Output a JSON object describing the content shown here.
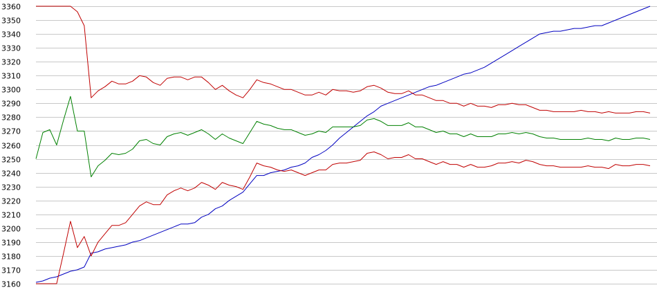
{
  "chart_data": {
    "type": "line",
    "title": "",
    "xlabel": "",
    "ylabel": "",
    "ylim": [
      3160,
      3360
    ],
    "yticks": [
      3160,
      3170,
      3180,
      3190,
      3200,
      3210,
      3220,
      3230,
      3240,
      3250,
      3260,
      3270,
      3280,
      3290,
      3300,
      3310,
      3320,
      3330,
      3340,
      3350,
      3360
    ],
    "grid": "horizontal",
    "legend": "none",
    "x": [
      1,
      2,
      3,
      4,
      5,
      6,
      7,
      8,
      9,
      10,
      11,
      12,
      13,
      14,
      15,
      16,
      17,
      18,
      19,
      20,
      21,
      22,
      23,
      24,
      25,
      26,
      27,
      28,
      29,
      30,
      31,
      32,
      33,
      34,
      35,
      36,
      37,
      38,
      39,
      40,
      41,
      42,
      43,
      44,
      45,
      46,
      47,
      48,
      49,
      50,
      51,
      52,
      53,
      54,
      55,
      56,
      57,
      58,
      59,
      60,
      61,
      62,
      63,
      64,
      65,
      66,
      67,
      68,
      69,
      70,
      71,
      72,
      73,
      74,
      75,
      76,
      77,
      78,
      79,
      80,
      81,
      82,
      83,
      84,
      85,
      86,
      87,
      88,
      89,
      90
    ],
    "series": [
      {
        "color": "#0000c0",
        "values": [
          3161,
          3162,
          3164,
          3165,
          3167,
          3169,
          3170,
          3172,
          3182,
          3183,
          3185,
          3186,
          3187,
          3188,
          3190,
          3191,
          3193,
          3195,
          3197,
          3199,
          3201,
          3203,
          3203,
          3204,
          3208,
          3210,
          3214,
          3216,
          3220,
          3223,
          3226,
          3232,
          3238,
          3238,
          3240,
          3241,
          3242,
          3244,
          3245,
          3247,
          3251,
          3253,
          3256,
          3260,
          3265,
          3269,
          3273,
          3277,
          3281,
          3284,
          3288,
          3290,
          3292,
          3294,
          3296,
          3298,
          3300,
          3302,
          3303,
          3305,
          3307,
          3309,
          3311,
          3312,
          3314,
          3316,
          3319,
          3322,
          3325,
          3328,
          3331,
          3334,
          3337,
          3340,
          3341,
          3342,
          3342,
          3343,
          3344,
          3344,
          3345,
          3346,
          3346,
          3348,
          3350,
          3352,
          3354,
          3356,
          3358,
          3360
        ]
      },
      {
        "color": "#c00000",
        "values": [
          3360,
          3360,
          3360,
          3360,
          3360,
          3360,
          3356,
          3346,
          3294,
          3299,
          3302,
          3306,
          3304,
          3304,
          3306,
          3310,
          3309,
          3305,
          3303,
          3308,
          3309,
          3309,
          3307,
          3309,
          3309,
          3305,
          3300,
          3303,
          3299,
          3296,
          3294,
          3300,
          3307,
          3305,
          3304,
          3302,
          3300,
          3300,
          3298,
          3296,
          3296,
          3298,
          3296,
          3300,
          3299,
          3299,
          3298,
          3299,
          3302,
          3303,
          3301,
          3298,
          3297,
          3297,
          3299,
          3296,
          3296,
          3294,
          3292,
          3292,
          3290,
          3290,
          3288,
          3290,
          3288,
          3288,
          3287,
          3289,
          3289,
          3290,
          3289,
          3289,
          3287,
          3285,
          3285,
          3284,
          3284,
          3284,
          3284,
          3285,
          3284,
          3284,
          3283,
          3284,
          3283,
          3283,
          3283,
          3284,
          3284,
          3283
        ]
      },
      {
        "color": "#008000",
        "values": [
          3250,
          3269,
          3271,
          3260,
          3278,
          3295,
          3270,
          3270,
          3237,
          3245,
          3249,
          3254,
          3253,
          3254,
          3257,
          3263,
          3264,
          3261,
          3260,
          3266,
          3268,
          3269,
          3267,
          3269,
          3271,
          3268,
          3264,
          3268,
          3265,
          3263,
          3261,
          3269,
          3277,
          3275,
          3274,
          3272,
          3271,
          3271,
          3269,
          3267,
          3268,
          3270,
          3269,
          3273,
          3273,
          3273,
          3273,
          3274,
          3278,
          3279,
          3277,
          3274,
          3274,
          3274,
          3276,
          3273,
          3273,
          3271,
          3269,
          3270,
          3268,
          3268,
          3266,
          3268,
          3266,
          3266,
          3266,
          3268,
          3268,
          3269,
          3268,
          3269,
          3268,
          3266,
          3265,
          3265,
          3264,
          3264,
          3264,
          3264,
          3265,
          3264,
          3264,
          3263,
          3265,
          3264,
          3264,
          3265,
          3265,
          3264
        ]
      },
      {
        "color": "#c00000",
        "values": [
          3160,
          3160,
          3160,
          3160,
          3182,
          3205,
          3186,
          3194,
          3180,
          3190,
          3196,
          3202,
          3202,
          3204,
          3210,
          3216,
          3219,
          3217,
          3217,
          3224,
          3227,
          3229,
          3227,
          3229,
          3233,
          3231,
          3228,
          3233,
          3231,
          3230,
          3228,
          3237,
          3247,
          3245,
          3244,
          3242,
          3241,
          3242,
          3240,
          3238,
          3240,
          3242,
          3242,
          3246,
          3247,
          3247,
          3248,
          3249,
          3254,
          3255,
          3253,
          3250,
          3251,
          3251,
          3253,
          3250,
          3250,
          3248,
          3246,
          3248,
          3246,
          3246,
          3244,
          3246,
          3244,
          3244,
          3245,
          3247,
          3247,
          3248,
          3247,
          3249,
          3248,
          3246,
          3245,
          3245,
          3244,
          3244,
          3244,
          3244,
          3245,
          3244,
          3244,
          3243,
          3246,
          3245,
          3245,
          3246,
          3246,
          3245
        ]
      }
    ]
  }
}
